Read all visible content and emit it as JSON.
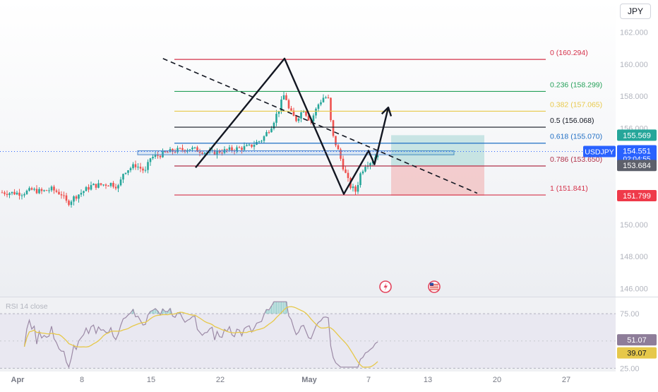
{
  "toolbar": {
    "currency_label": "JPY"
  },
  "chart_data": {
    "type": "candlestick",
    "symbol": "USDJPY",
    "colors": {
      "up": "#26a69a",
      "down": "#ef5350",
      "rsi": "#9c8aa6",
      "rsi_ma": "#e6c84a"
    },
    "price_axis": {
      "ticks": [
        {
          "value": 162.0,
          "label": "162.000"
        },
        {
          "value": 160.0,
          "label": "160.000"
        },
        {
          "value": 158.0,
          "label": "158.000"
        },
        {
          "value": 156.0,
          "label": "156.000"
        },
        {
          "value": 154.0,
          "label": "154.000"
        },
        {
          "value": 152.0,
          "label": "152.000"
        },
        {
          "value": 150.0,
          "label": "150.000"
        },
        {
          "value": 148.0,
          "label": "148.000"
        },
        {
          "value": 146.0,
          "label": "146.000"
        }
      ],
      "range": [
        145.5,
        164.0
      ]
    },
    "time_axis": {
      "ticks": [
        {
          "label": "Apr",
          "bold": true
        },
        {
          "label": "8"
        },
        {
          "label": "15"
        },
        {
          "label": "22"
        },
        {
          "label": "May",
          "bold": true
        },
        {
          "label": "7"
        },
        {
          "label": "13"
        },
        {
          "label": "20"
        },
        {
          "label": "27"
        }
      ]
    },
    "price_labels": [
      {
        "value": 155.569,
        "label": "155.569",
        "color": "#26a69a"
      },
      {
        "value": 154.551,
        "label": "154.551",
        "sub": "02:04:55",
        "tag": "USDJPY",
        "color": "#2962ff"
      },
      {
        "value": 153.684,
        "label": "153.684",
        "color": "#5d606b"
      },
      {
        "value": 151.799,
        "label": "151.799",
        "color": "#ef3a4a"
      }
    ],
    "fib_levels": [
      {
        "label": "0 (160.294)",
        "value": 160.294,
        "color": "#d5324a"
      },
      {
        "label": "0.236 (158.299)",
        "value": 158.299,
        "color": "#26a15a"
      },
      {
        "label": "0.382 (157.065)",
        "value": 157.065,
        "color": "#e8c94a"
      },
      {
        "label": "0.5 (156.068)",
        "value": 156.068,
        "color": "#131722"
      },
      {
        "label": "0.618 (155.070)",
        "value": 155.07,
        "color": "#1f6fc4"
      },
      {
        "label": "0.786 (153.650)",
        "value": 153.65,
        "color": "#b0324a"
      },
      {
        "label": "1 (151.841)",
        "value": 151.841,
        "color": "#d5324a"
      }
    ],
    "position": {
      "entry": 153.684,
      "target": 155.569,
      "stop": 151.799
    },
    "support_zone": {
      "top": 154.6,
      "bottom": 154.35
    },
    "pattern_path": [
      {
        "day": 19.5,
        "price": 153.55
      },
      {
        "day": 28.5,
        "price": 160.35
      },
      {
        "day": 34.5,
        "price": 151.9
      },
      {
        "day": 37.0,
        "price": 154.6
      },
      {
        "day": 37.6,
        "price": 153.75
      },
      {
        "day": 39.0,
        "price": 157.3
      }
    ],
    "trend_line": [
      {
        "day": 16.2,
        "price": 160.35
      },
      {
        "day": 48.0,
        "price": 151.95
      }
    ],
    "rsi": {
      "label": "RSI 14 close",
      "levels": [
        {
          "value": 75,
          "label": "75.00"
        },
        {
          "value": 25,
          "label": "25.00"
        }
      ],
      "range": [
        22,
        90
      ],
      "current": {
        "rsi": 51.07,
        "rsi_label": "51.07",
        "ma": 39.07,
        "ma_label": "39.07"
      }
    }
  }
}
